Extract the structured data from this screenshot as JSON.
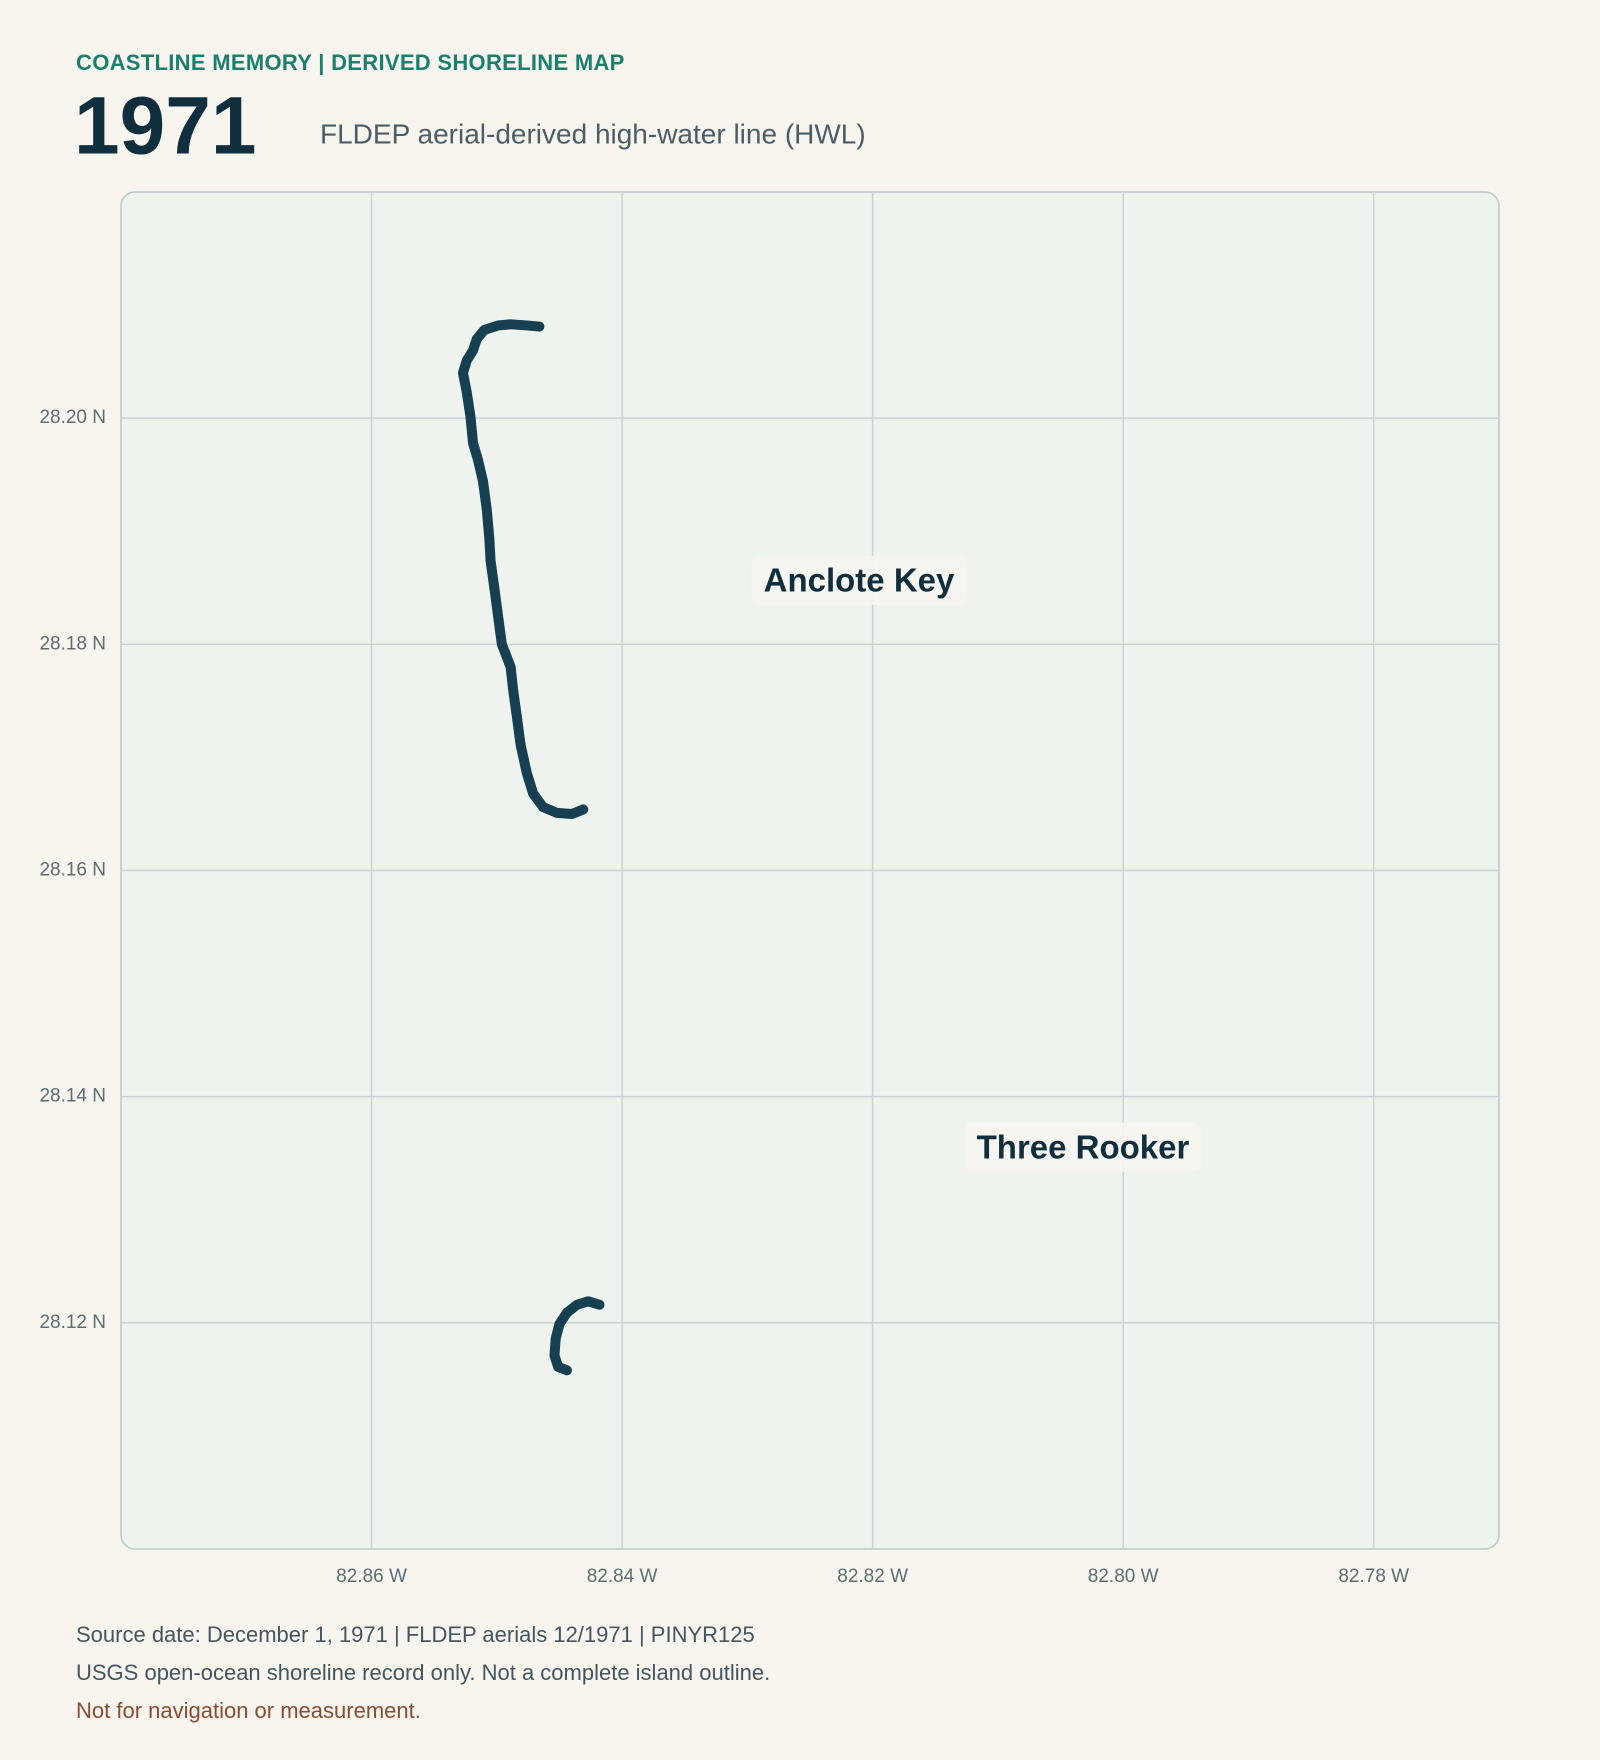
{
  "chart_data": {
    "type": "line",
    "kicker": "COASTLINE MEMORY | DERIVED SHORELINE MAP",
    "title": "1971",
    "subtitle": "FLDEP aerial-derived high-water line (HWL)",
    "xlim": [
      -82.88,
      -82.77
    ],
    "ylim": [
      28.1,
      28.22
    ],
    "xticks": [
      {
        "value": -82.86,
        "label": "82.86 W"
      },
      {
        "value": -82.84,
        "label": "82.84 W"
      },
      {
        "value": -82.82,
        "label": "82.82 W"
      },
      {
        "value": -82.8,
        "label": "82.80 W"
      },
      {
        "value": -82.78,
        "label": "82.78 W"
      }
    ],
    "yticks": [
      {
        "value": 28.2,
        "label": "28.20 N"
      },
      {
        "value": 28.18,
        "label": "28.18 N"
      },
      {
        "value": 28.16,
        "label": "28.16 N"
      },
      {
        "value": 28.14,
        "label": "28.14 N"
      },
      {
        "value": 28.12,
        "label": "28.12 N"
      }
    ],
    "grid": true,
    "series": [
      {
        "color": "#173f52",
        "x": [
          -82.8466,
          -82.8476,
          -82.8489,
          -82.8499,
          -82.851,
          -82.8516,
          -82.8519,
          -82.8524,
          -82.8527,
          -82.8524,
          -82.8521,
          -82.8519,
          -82.8515,
          -82.8511,
          -82.8508,
          -82.8506,
          -82.8505,
          -82.8502,
          -82.8499,
          -82.8496,
          -82.8489,
          -82.8487,
          -82.8484,
          -82.8481,
          -82.8476,
          -82.8471,
          -82.8463,
          -82.8452,
          -82.844,
          -82.8431
        ],
        "values": [
          28.2081,
          28.2082,
          28.2083,
          28.2082,
          28.2078,
          28.207,
          28.206,
          28.2051,
          28.204,
          28.2023,
          28.2001,
          28.1978,
          28.1963,
          28.1944,
          28.1919,
          28.1894,
          28.1874,
          28.185,
          28.1825,
          28.18,
          28.178,
          28.176,
          28.1736,
          28.1711,
          28.1686,
          28.1668,
          28.1656,
          28.1651,
          28.165,
          28.1654
        ]
      },
      {
        "color": "#173f52",
        "x": [
          -82.8418,
          -82.8427,
          -82.8436,
          -82.8444,
          -82.845,
          -82.8453,
          -82.8454,
          -82.8451,
          -82.8444
        ],
        "values": [
          28.1216,
          28.1219,
          28.1216,
          28.1209,
          28.1199,
          28.1186,
          28.1171,
          28.1161,
          28.1158
        ]
      }
    ],
    "annotations": [
      "Anclote Key",
      "Three Rooker"
    ],
    "footer": [
      "Source date: December 1, 1971 | FLDEP aerials 12/1971 | PINYR125",
      "USGS open-ocean shoreline record only. Not a complete island outline.",
      "Not for navigation or measurement."
    ]
  }
}
